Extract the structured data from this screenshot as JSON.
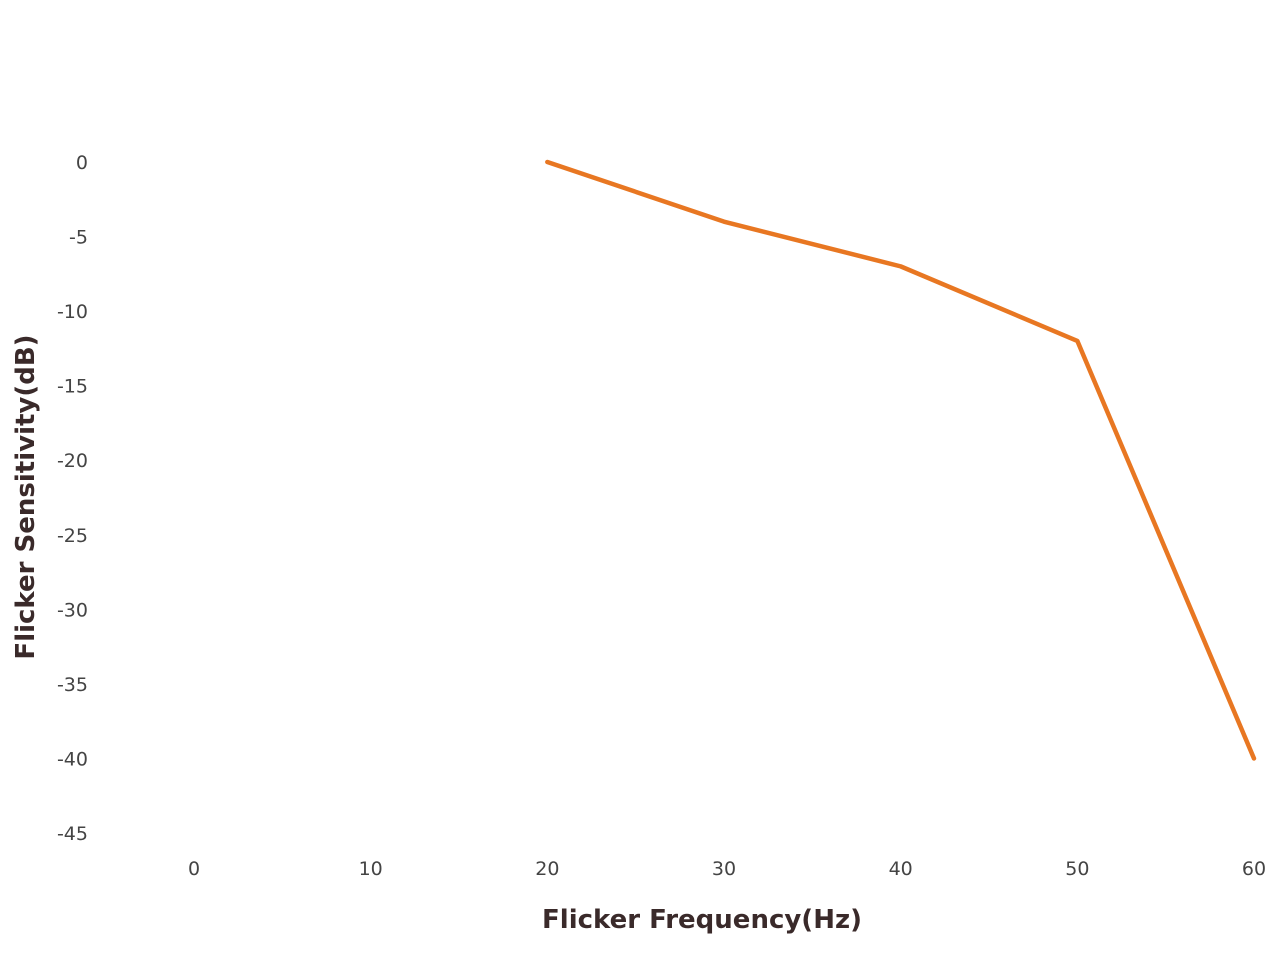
{
  "chart_data": {
    "type": "line",
    "title": "",
    "xlabel": "Flicker Frequency(Hz)",
    "ylabel": "Flicker Sensitivity(dB)",
    "xlim": [
      0,
      60
    ],
    "ylim": [
      -45,
      0
    ],
    "xticks": [
      0,
      10,
      20,
      30,
      40,
      50,
      60
    ],
    "yticks": [
      0,
      -5,
      -10,
      -15,
      -20,
      -25,
      -30,
      -35,
      -40,
      -45
    ],
    "grid": false,
    "legend": "none",
    "series": [
      {
        "color": "#E87722",
        "x": [
          20,
          30,
          40,
          50,
          60
        ],
        "y": [
          0,
          -4,
          -7,
          -12,
          -40
        ]
      }
    ]
  }
}
